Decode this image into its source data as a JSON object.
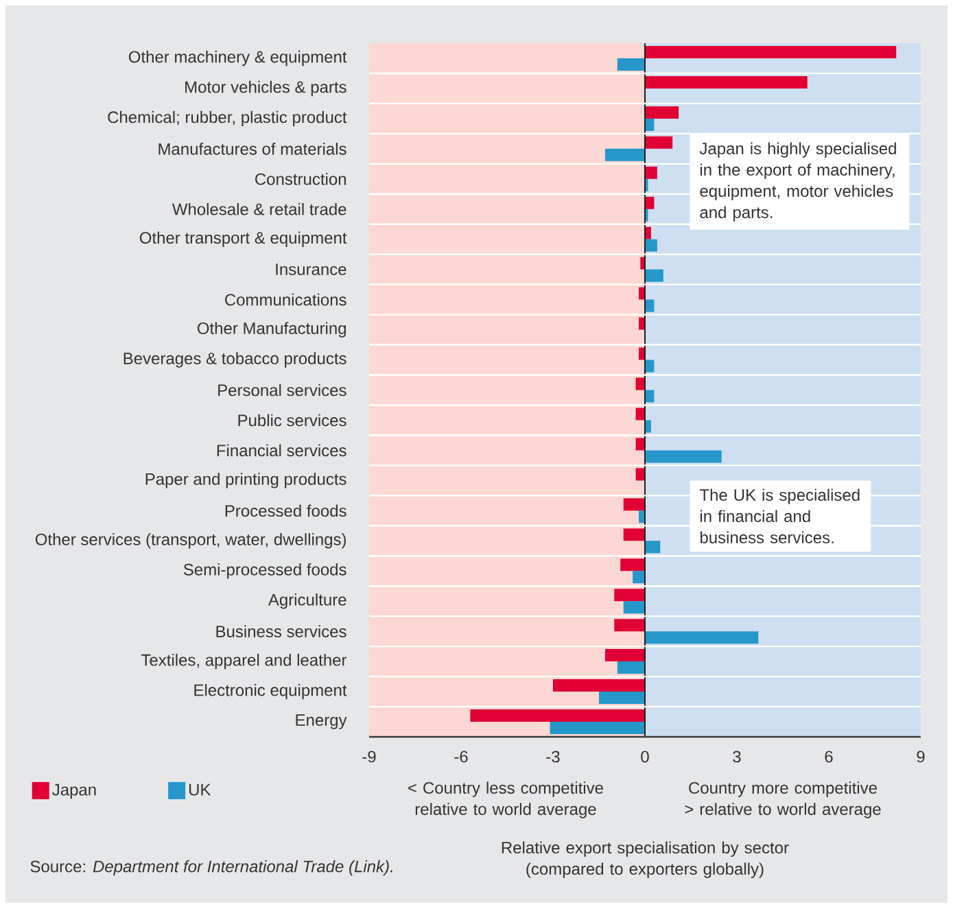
{
  "chart_data": {
    "type": "bar",
    "orientation": "horizontal",
    "categories": [
      "Other machinery & equipment",
      "Motor vehicles & parts",
      "Chemical; rubber, plastic product",
      "Manufactures of materials",
      "Construction",
      "Wholesale & retail trade",
      "Other transport & equipment",
      "Insurance",
      "Communications",
      "Other Manufacturing",
      "Beverages & tobacco products",
      "Personal services",
      "Public services",
      "Financial services",
      "Paper and printing products",
      "Processed foods",
      "Other services (transport, water, dwellings)",
      "Semi-processed foods",
      "Agriculture",
      "Business services",
      "Textiles, apparel and leather",
      "Electronic equipment",
      "Energy"
    ],
    "series": [
      {
        "name": "Japan",
        "color": "#e00034",
        "values": [
          8.2,
          5.3,
          1.1,
          0.9,
          0.4,
          0.3,
          0.2,
          -0.15,
          -0.2,
          -0.2,
          -0.2,
          -0.3,
          -0.3,
          -0.3,
          -0.3,
          -0.7,
          -0.7,
          -0.8,
          -1.0,
          -1.0,
          -1.3,
          -3.0,
          -5.7
        ]
      },
      {
        "name": "UK",
        "color": "#2597ca",
        "values": [
          -0.9,
          null,
          0.3,
          -1.3,
          0.1,
          0.1,
          0.4,
          0.6,
          0.3,
          null,
          0.3,
          0.3,
          0.2,
          2.5,
          null,
          -0.2,
          0.5,
          -0.4,
          -0.7,
          3.7,
          -0.9,
          -1.5,
          -3.1
        ]
      }
    ],
    "xlim": [
      -9,
      9
    ],
    "xticks": [
      -9,
      -6,
      -3,
      0,
      3,
      6,
      9
    ],
    "xlabel": "Relative export specialisation by sector (compared to exporters globally)",
    "bands": [
      {
        "axis": "x",
        "from": -9,
        "to": 0,
        "color": "#fdd7d3"
      },
      {
        "axis": "x",
        "from": 0,
        "to": 9,
        "color": "#cddff0"
      }
    ],
    "ref_lines": [
      {
        "axis": "x",
        "value": 0,
        "color": "#231f20"
      }
    ],
    "grid": "y",
    "legend": "bottom left",
    "annotations": [
      "Japan is highly specialised in the export of machinery, equipment, motor vehicles and parts.",
      "The UK is specialised in financial and business services.",
      "< Country less competitive relative to world average",
      "Country more competitive > relative to world average",
      "Source: *Department for International Trade (Link).*"
    ]
  }
}
